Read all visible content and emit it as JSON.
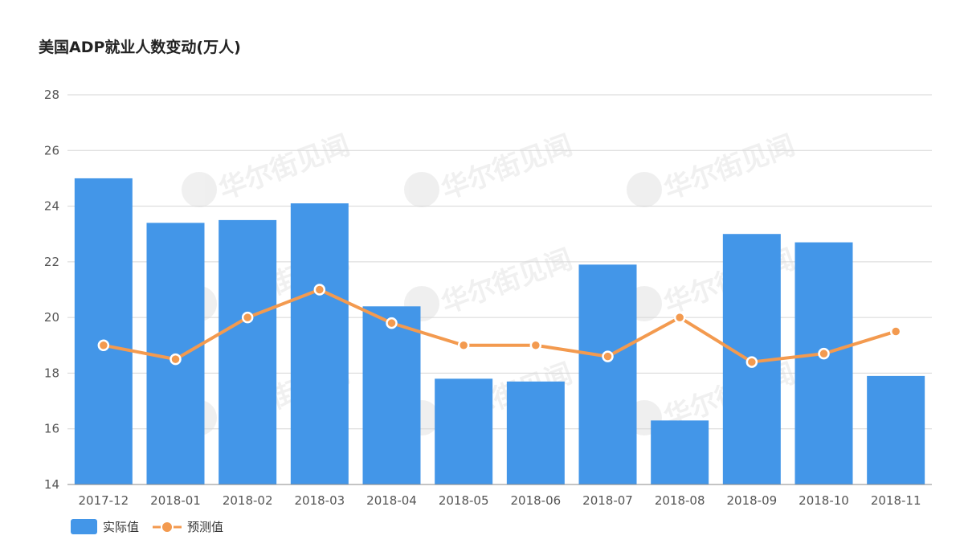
{
  "chart_data": {
    "type": "bar",
    "title": "美国ADP就业人数变动(万人)",
    "categories": [
      "2017-12",
      "2018-01",
      "2018-02",
      "2018-03",
      "2018-04",
      "2018-05",
      "2018-06",
      "2018-07",
      "2018-08",
      "2018-09",
      "2018-10",
      "2018-11"
    ],
    "series": [
      {
        "name": "实际值",
        "type": "bar",
        "color": "#4396e8",
        "values": [
          25.0,
          23.4,
          23.5,
          24.1,
          20.4,
          17.8,
          17.7,
          21.9,
          16.3,
          23.0,
          22.7,
          17.9
        ]
      },
      {
        "name": "预测值",
        "type": "line",
        "color": "#f39a4f",
        "values": [
          19.0,
          18.5,
          20.0,
          21.0,
          19.8,
          19.0,
          19.0,
          18.6,
          20.0,
          18.4,
          18.7,
          19.5
        ]
      }
    ],
    "xlabel": "",
    "ylabel": "",
    "ylim": [
      14,
      28
    ],
    "yticks": [
      14,
      16,
      18,
      20,
      22,
      24,
      26,
      28
    ],
    "grid": true,
    "legend": "bottom-left"
  },
  "watermark": {
    "text": "华尔街见闻"
  }
}
